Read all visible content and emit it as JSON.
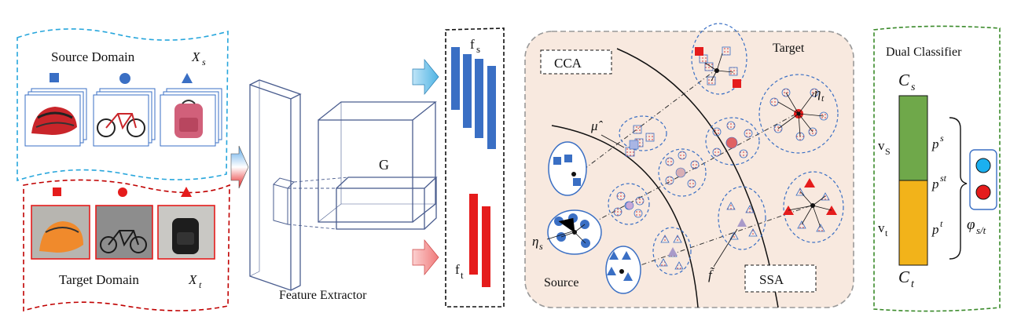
{
  "source_panel": {
    "title": "Source Domain",
    "symbol": "X",
    "symbol_sub": "s",
    "images": [
      "helmet",
      "bicycle",
      "backpack"
    ],
    "markers": [
      "square",
      "circle",
      "triangle"
    ],
    "color": "#3a6fc4"
  },
  "target_panel": {
    "title": "Target Domain",
    "symbol": "X",
    "symbol_sub": "t",
    "images": [
      "helmet",
      "bicycle",
      "backpack"
    ],
    "markers": [
      "square",
      "circle",
      "triangle"
    ],
    "color": "#e51c1c"
  },
  "extractor": {
    "name": "Feature Extractor",
    "g_label": "G"
  },
  "features": {
    "source_label": "f",
    "source_sub": "s",
    "target_label": "f",
    "target_sub": "t"
  },
  "alignment": {
    "cca_label": "CCA",
    "ssa_label": "SSA",
    "target_label": "Target",
    "source_label": "Source",
    "mu_hat": "μ̂",
    "eta_s": "η",
    "eta_s_sub": "s",
    "eta_t": "η",
    "eta_t_sub": "t",
    "f_tilde": "f̃"
  },
  "classifier": {
    "title": "Dual Classifier",
    "cs": "C",
    "cs_sub": "s",
    "ct": "C",
    "ct_sub": "t",
    "vs": "v",
    "vs_sub": "S",
    "vt": "v",
    "vt_sub": "t",
    "ps": "p",
    "ps_sup": "s",
    "pst": "p",
    "pst_sup": "st",
    "pt": "p",
    "pt_sup": "t",
    "phi": "φ",
    "phi_sub": "s/t",
    "green": "#6fa84a",
    "yellow": "#f2b31a"
  },
  "colors": {
    "blue": "#3a6fc4",
    "red": "#e51c1c",
    "cyan_border": "#27a6dc",
    "dark_red_border": "#c00000",
    "green_border": "#3a8a2a",
    "panel_fill": "#f8e9df"
  }
}
